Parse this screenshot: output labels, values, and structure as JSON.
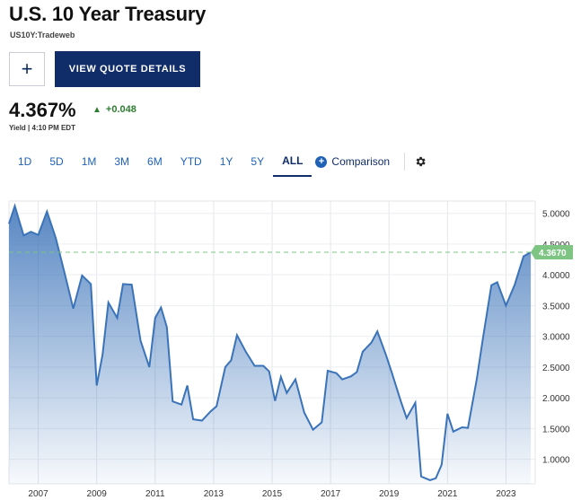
{
  "header": {
    "title": "U.S. 10 Year Treasury",
    "symbol": "US10Y:Tradeweb",
    "plus_label": "+",
    "quote_button": "VIEW QUOTE DETAILS"
  },
  "quote": {
    "price": "4.367%",
    "change": "+0.048",
    "yield_line": "Yield | 4:10 PM EDT",
    "up_color": "#2e7d32"
  },
  "tabs": {
    "items": [
      "1D",
      "5D",
      "1M",
      "3M",
      "6M",
      "YTD",
      "1Y",
      "5Y",
      "ALL"
    ],
    "active": "ALL",
    "comparison_label": "Comparison",
    "comparison_icon": "plus-circle-icon",
    "settings_icon": "gear-icon"
  },
  "colors": {
    "line": "#3b73b9",
    "accent_navy": "#102d69",
    "link_blue": "#1f62b5",
    "current_badge": "#7ec483"
  },
  "chart_data": {
    "type": "area",
    "title": "",
    "xlabel": "",
    "ylabel": "",
    "x_ticks": [
      "2007",
      "2009",
      "2011",
      "2013",
      "2015",
      "2017",
      "2019",
      "2021",
      "2023"
    ],
    "y_ticks": [
      "5.0000",
      "4.5000",
      "4.0000",
      "3.5000",
      "3.0000",
      "2.5000",
      "2.0000",
      "1.5000",
      "1.0000"
    ],
    "xlim": [
      2006.0,
      2024.0
    ],
    "ylim": [
      0.6,
      5.2
    ],
    "grid": true,
    "current_value": 4.367,
    "current_label": "4.3670",
    "series": [
      {
        "values": [
          [
            2006.0,
            4.83
          ],
          [
            2006.2,
            5.12
          ],
          [
            2006.5,
            4.64
          ],
          [
            2006.75,
            4.7
          ],
          [
            2007.0,
            4.65
          ],
          [
            2007.3,
            5.03
          ],
          [
            2007.6,
            4.6
          ],
          [
            2007.9,
            4.03
          ],
          [
            2008.2,
            3.45
          ],
          [
            2008.5,
            3.99
          ],
          [
            2008.8,
            3.85
          ],
          [
            2009.0,
            2.2
          ],
          [
            2009.2,
            2.7
          ],
          [
            2009.4,
            3.55
          ],
          [
            2009.7,
            3.3
          ],
          [
            2009.9,
            3.85
          ],
          [
            2010.2,
            3.84
          ],
          [
            2010.5,
            2.93
          ],
          [
            2010.8,
            2.5
          ],
          [
            2011.0,
            3.3
          ],
          [
            2011.2,
            3.47
          ],
          [
            2011.4,
            3.15
          ],
          [
            2011.6,
            1.94
          ],
          [
            2011.9,
            1.89
          ],
          [
            2012.1,
            2.2
          ],
          [
            2012.3,
            1.65
          ],
          [
            2012.6,
            1.63
          ],
          [
            2012.9,
            1.78
          ],
          [
            2013.1,
            1.86
          ],
          [
            2013.4,
            2.5
          ],
          [
            2013.6,
            2.61
          ],
          [
            2013.8,
            3.02
          ],
          [
            2014.1,
            2.75
          ],
          [
            2014.4,
            2.52
          ],
          [
            2014.7,
            2.52
          ],
          [
            2014.9,
            2.43
          ],
          [
            2015.1,
            1.95
          ],
          [
            2015.3,
            2.34
          ],
          [
            2015.5,
            2.08
          ],
          [
            2015.8,
            2.3
          ],
          [
            2016.1,
            1.76
          ],
          [
            2016.4,
            1.48
          ],
          [
            2016.7,
            1.6
          ],
          [
            2016.9,
            2.44
          ],
          [
            2017.2,
            2.4
          ],
          [
            2017.4,
            2.3
          ],
          [
            2017.7,
            2.35
          ],
          [
            2017.9,
            2.42
          ],
          [
            2018.1,
            2.75
          ],
          [
            2018.4,
            2.9
          ],
          [
            2018.6,
            3.08
          ],
          [
            2018.9,
            2.69
          ],
          [
            2019.1,
            2.4
          ],
          [
            2019.4,
            1.95
          ],
          [
            2019.6,
            1.67
          ],
          [
            2019.9,
            1.92
          ],
          [
            2020.1,
            0.72
          ],
          [
            2020.4,
            0.66
          ],
          [
            2020.6,
            0.69
          ],
          [
            2020.8,
            0.91
          ],
          [
            2021.0,
            1.74
          ],
          [
            2021.2,
            1.45
          ],
          [
            2021.5,
            1.52
          ],
          [
            2021.7,
            1.51
          ],
          [
            2022.0,
            2.3
          ],
          [
            2022.2,
            2.93
          ],
          [
            2022.5,
            3.83
          ],
          [
            2022.7,
            3.88
          ],
          [
            2023.0,
            3.5
          ],
          [
            2023.3,
            3.84
          ],
          [
            2023.6,
            4.3
          ],
          [
            2023.85,
            4.367
          ]
        ]
      }
    ]
  }
}
